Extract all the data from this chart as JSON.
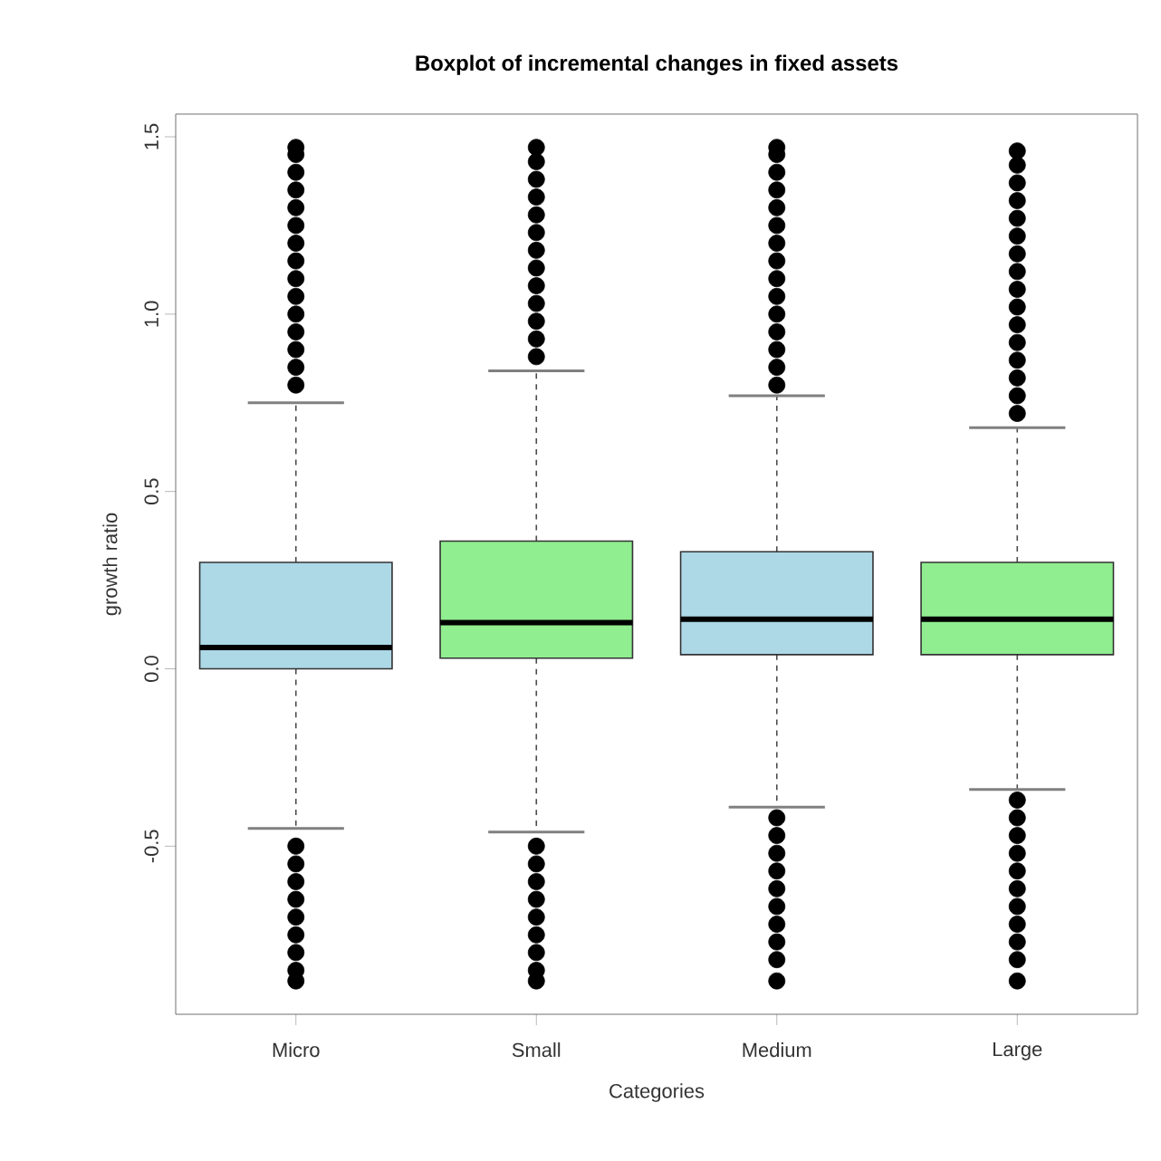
{
  "chart_data": {
    "type": "box",
    "title": "Boxplot of incremental changes in fixed assets",
    "xlabel": "Categories",
    "ylabel": "growth ratio",
    "categories": [
      "Micro",
      "Small",
      "Medium",
      "Large"
    ],
    "colors": [
      "#add8e6",
      "#90ee90",
      "#add8e6",
      "#90ee90"
    ],
    "boxes": [
      {
        "low": -0.45,
        "q1": 0.0,
        "median": 0.06,
        "q3": 0.3,
        "high": 0.75,
        "outliers": [
          0.8,
          0.85,
          0.9,
          0.95,
          1.0,
          1.05,
          1.1,
          1.15,
          1.2,
          1.25,
          1.3,
          1.35,
          1.4,
          1.45,
          1.47,
          -0.5,
          -0.55,
          -0.6,
          -0.65,
          -0.7,
          -0.75,
          -0.8,
          -0.85,
          -0.88
        ]
      },
      {
        "low": -0.46,
        "q1": 0.03,
        "median": 0.13,
        "q3": 0.36,
        "high": 0.84,
        "outliers": [
          0.88,
          0.93,
          0.98,
          1.03,
          1.08,
          1.13,
          1.18,
          1.23,
          1.28,
          1.33,
          1.38,
          1.43,
          1.47,
          -0.5,
          -0.55,
          -0.6,
          -0.65,
          -0.7,
          -0.75,
          -0.8,
          -0.85,
          -0.88
        ]
      },
      {
        "low": -0.39,
        "q1": 0.04,
        "median": 0.14,
        "q3": 0.33,
        "high": 0.77,
        "outliers": [
          0.8,
          0.85,
          0.9,
          0.95,
          1.0,
          1.05,
          1.1,
          1.15,
          1.2,
          1.25,
          1.3,
          1.35,
          1.4,
          1.45,
          1.47,
          -0.42,
          -0.47,
          -0.52,
          -0.57,
          -0.62,
          -0.67,
          -0.72,
          -0.77,
          -0.82,
          -0.88
        ]
      },
      {
        "low": -0.34,
        "q1": 0.04,
        "median": 0.14,
        "q3": 0.3,
        "high": 0.68,
        "outliers": [
          0.72,
          0.77,
          0.82,
          0.87,
          0.92,
          0.97,
          1.02,
          1.07,
          1.12,
          1.17,
          1.22,
          1.27,
          1.32,
          1.37,
          1.42,
          1.46,
          -0.37,
          -0.42,
          -0.47,
          -0.52,
          -0.57,
          -0.62,
          -0.67,
          -0.72,
          -0.77,
          -0.82,
          -0.88
        ]
      }
    ],
    "ylim": [
      -0.974,
      1.564
    ],
    "yticks": [
      {
        "value": -0.5,
        "label": "-0.5"
      },
      {
        "value": 0,
        "label": "0.0"
      },
      {
        "value": 0.5,
        "label": "0.5"
      },
      {
        "value": 1,
        "label": "1.0"
      },
      {
        "value": 1.5,
        "label": "1.5"
      }
    ],
    "marker": "circle"
  }
}
